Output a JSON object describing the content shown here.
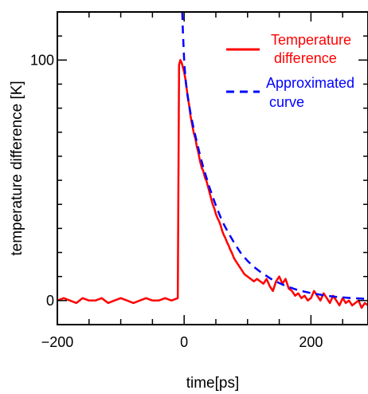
{
  "chart_data": {
    "type": "line",
    "title": "",
    "xlabel": "time[ps]",
    "ylabel": "temperature difference [K]",
    "xlim": [
      -200,
      290
    ],
    "ylim": [
      -10,
      120
    ],
    "xticks": [
      -200,
      0,
      200
    ],
    "yticks": [
      0,
      100
    ],
    "xtick_labels": [
      "−200",
      "0",
      "200"
    ],
    "ytick_labels": [
      "0",
      "100"
    ],
    "grid": false,
    "legend_placement": "top-right",
    "series": [
      {
        "name": "Temperature difference",
        "legend_lines": [
          "Temperature",
          "difference"
        ],
        "color": "#ff0000",
        "style": "solid",
        "x": [
          -200,
          -190,
          -180,
          -170,
          -160,
          -150,
          -140,
          -130,
          -120,
          -110,
          -100,
          -90,
          -80,
          -70,
          -60,
          -50,
          -40,
          -30,
          -20,
          -15,
          -10,
          -8,
          -6,
          -4,
          -2,
          0,
          2,
          4,
          6,
          8,
          10,
          12,
          15,
          18,
          20,
          22,
          25,
          28,
          30,
          33,
          35,
          38,
          40,
          43,
          45,
          48,
          50,
          53,
          55,
          58,
          60,
          63,
          65,
          68,
          70,
          73,
          75,
          78,
          80,
          85,
          90,
          95,
          100,
          105,
          110,
          115,
          120,
          125,
          130,
          135,
          140,
          145,
          150,
          155,
          160,
          165,
          170,
          175,
          180,
          185,
          190,
          195,
          200,
          205,
          210,
          215,
          220,
          225,
          230,
          235,
          240,
          245,
          250,
          255,
          260,
          265,
          270,
          275,
          280,
          285,
          290
        ],
        "y": [
          0,
          1,
          0,
          -1,
          1,
          0,
          0,
          1,
          -1,
          0,
          1,
          0,
          -1,
          0,
          1,
          0,
          0,
          1,
          0,
          0.5,
          1,
          98,
          100,
          99,
          97,
          95,
          92,
          88,
          84,
          81,
          77,
          74,
          70,
          67,
          64,
          62,
          58,
          55,
          54,
          51,
          50,
          47,
          45,
          42,
          40,
          38,
          36,
          34,
          33,
          31,
          29,
          27,
          26,
          24,
          23,
          21,
          20,
          18,
          17,
          15,
          13,
          11,
          10,
          9,
          8,
          9,
          8,
          7,
          9,
          6,
          4,
          8,
          10,
          7,
          9,
          5,
          4,
          2,
          3,
          1,
          2,
          0,
          1,
          4,
          2,
          0,
          3,
          1,
          -1,
          2,
          0,
          -2,
          1,
          -1,
          0,
          -2,
          -1,
          0,
          -3,
          -1,
          -2
        ],
        "data_name": "temperature-difference-line"
      },
      {
        "name": "Approximated curve",
        "legend_lines": [
          "Approximated",
          "curve"
        ],
        "color": "#0000ff",
        "style": "dashed",
        "x": [
          -3,
          -2,
          -1,
          0,
          1,
          2,
          3,
          5,
          8,
          10,
          15,
          20,
          25,
          30,
          40,
          50,
          60,
          70,
          80,
          90,
          100,
          110,
          120,
          140,
          160,
          180,
          200,
          220,
          240,
          260,
          280,
          290
        ],
        "y": [
          120,
          112,
          106,
          100,
          96,
          93,
          90,
          86,
          81,
          78,
          71.5,
          66,
          60.5,
          55.5,
          47,
          39.5,
          33,
          28,
          23.5,
          19.5,
          16.5,
          14,
          12,
          8.5,
          6.1,
          4.3,
          3.1,
          2.2,
          1.5,
          1.1,
          0.8,
          0.6
        ],
        "data_name": "approximated-curve-line"
      }
    ]
  }
}
